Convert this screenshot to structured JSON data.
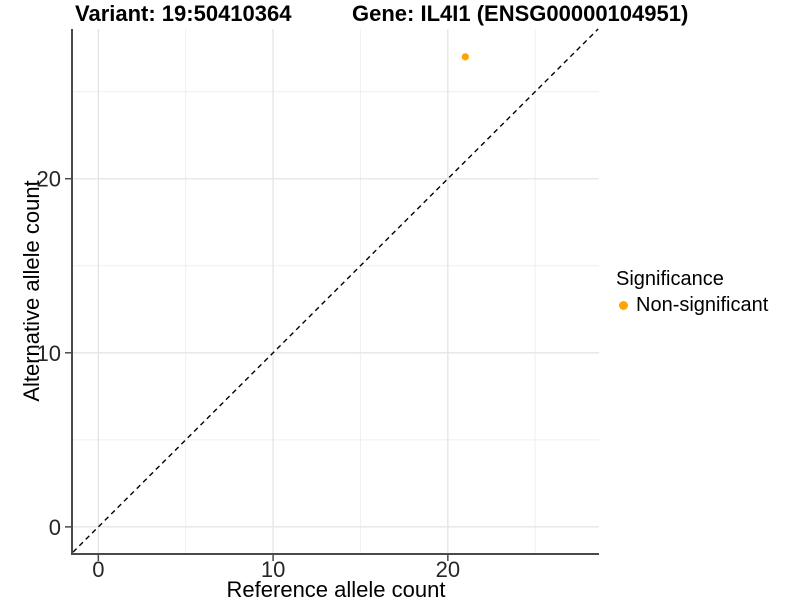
{
  "header": {
    "variant_title": "Variant: 19:50410364",
    "gene_title": "Gene: IL4I1 (ENSG00000104951)"
  },
  "legend": {
    "title": "Significance",
    "items": [
      {
        "label": "Non-significant",
        "color": "#FFA500"
      }
    ]
  },
  "chart_data": {
    "type": "scatter",
    "title": "Variant: 19:50410364 — Gene: IL4I1 (ENSG00000104951)",
    "xlabel": "Reference allele count",
    "ylabel": "Alternative allele count",
    "xlim": [
      -1.45,
      28.65
    ],
    "ylim": [
      -1.5,
      28.6
    ],
    "x_ticks": [
      0,
      10,
      20
    ],
    "y_ticks": [
      0,
      10,
      20
    ],
    "grid_major": [
      0,
      10,
      20
    ],
    "grid_minor": [
      5,
      15,
      25
    ],
    "grid_on": true,
    "legend_position": "right",
    "reference_line": {
      "kind": "identity y=x",
      "style": "dashed",
      "color": "#000000"
    },
    "series": [
      {
        "name": "Non-significant",
        "color": "#FFA500",
        "point_radius": 3.6,
        "points": [
          {
            "x": 21,
            "y": 27
          }
        ]
      }
    ],
    "style": {
      "axis_line_color": "#4a4a4a",
      "grid_major_color": "#e4e4e4",
      "grid_minor_color": "#efefef",
      "tick_label_color": "#262626",
      "panel_background": "#ffffff"
    }
  }
}
